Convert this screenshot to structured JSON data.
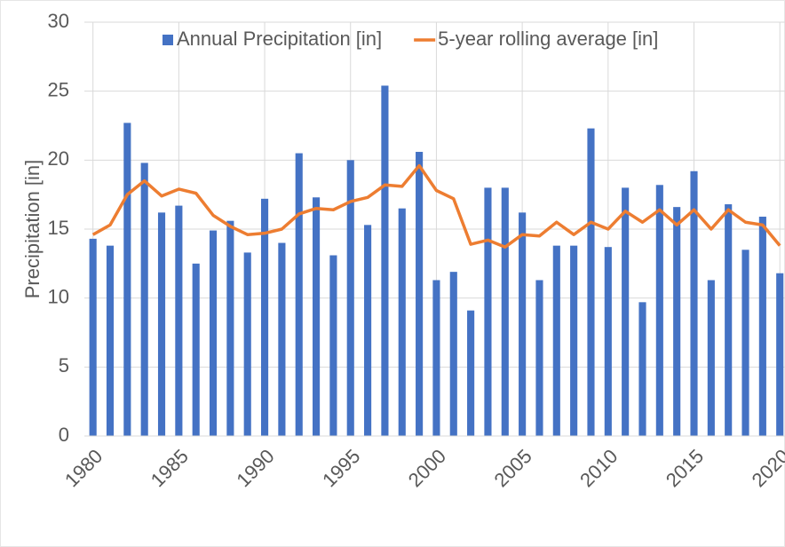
{
  "chart_data": {
    "type": "bar_line",
    "y_label": "Precipitation [in]",
    "x": [
      1980,
      1981,
      1982,
      1983,
      1984,
      1985,
      1986,
      1987,
      1988,
      1989,
      1990,
      1991,
      1992,
      1993,
      1994,
      1995,
      1996,
      1997,
      1998,
      1999,
      2000,
      2001,
      2002,
      2003,
      2004,
      2005,
      2006,
      2007,
      2008,
      2009,
      2010,
      2011,
      2012,
      2013,
      2014,
      2015,
      2016,
      2017,
      2018,
      2019,
      2020
    ],
    "series": [
      {
        "name": "Annual Precipitation [in]",
        "type": "bar",
        "color": "#4472c4",
        "values": [
          14.3,
          13.8,
          22.7,
          19.8,
          16.2,
          16.7,
          12.5,
          14.9,
          15.6,
          13.3,
          17.2,
          14.0,
          20.5,
          17.3,
          13.1,
          20.0,
          15.3,
          25.4,
          16.5,
          20.6,
          11.3,
          11.9,
          9.1,
          18.0,
          18.0,
          16.2,
          11.3,
          13.8,
          13.8,
          22.3,
          13.7,
          18.0,
          9.7,
          18.2,
          16.6,
          19.2,
          11.3,
          16.8,
          13.5,
          15.9,
          11.8
        ]
      },
      {
        "name": "5-year rolling average [in]",
        "type": "line",
        "color": "#ed7d31",
        "values": [
          14.6,
          15.3,
          17.5,
          18.5,
          17.4,
          17.9,
          17.6,
          16.0,
          15.2,
          14.6,
          14.7,
          15.0,
          16.1,
          16.5,
          16.4,
          17.0,
          17.3,
          18.2,
          18.1,
          19.6,
          17.8,
          17.2,
          13.9,
          14.2,
          13.7,
          14.6,
          14.5,
          15.5,
          14.6,
          15.5,
          15.0,
          16.3,
          15.5,
          16.4,
          15.3,
          16.4,
          15.0,
          16.4,
          15.5,
          15.3,
          13.8
        ]
      }
    ],
    "xlim": [
      1979.5,
      2020.3
    ],
    "xticks": [
      1980,
      1985,
      1990,
      1995,
      2000,
      2005,
      2010,
      2015,
      2020
    ],
    "ylim": [
      0,
      30
    ],
    "yticks": [
      0,
      5,
      10,
      15,
      20,
      25,
      30
    ],
    "grid": true,
    "legend": "top"
  }
}
